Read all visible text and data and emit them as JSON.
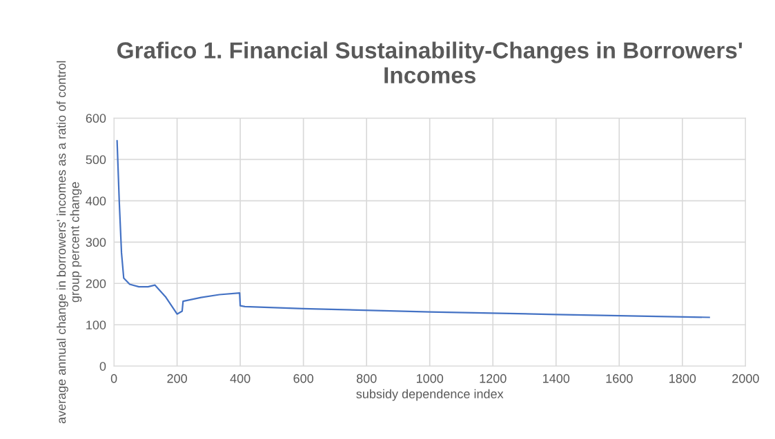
{
  "chart_data": {
    "type": "line",
    "title": "Grafico 1. Financial Sustainability-Changes in Borrowers' Incomes",
    "xlabel": "subsidy dependence index",
    "ylabel": "average annual change in borrowers' incomes as a ratio of control group percent change",
    "series": [
      {
        "color": "#4472c4",
        "x": [
          10,
          17,
          24,
          31,
          50,
          79,
          108,
          130,
          163,
          200,
          216,
          219,
          276,
          334,
          398,
          400,
          415,
          600,
          1000,
          1400,
          1885
        ],
        "values": [
          545,
          396,
          274,
          213,
          198,
          192,
          192,
          196,
          168,
          126,
          133,
          157,
          166,
          173,
          177,
          146,
          144,
          139,
          131,
          125,
          118
        ]
      }
    ],
    "xlim": [
      0,
      2000
    ],
    "xticks": [
      0,
      200,
      400,
      600,
      800,
      1000,
      1200,
      1400,
      1600,
      1800,
      2000
    ],
    "ylim": [
      0,
      600
    ],
    "yticks": [
      0,
      100,
      200,
      300,
      400,
      500,
      600
    ],
    "grid": true
  }
}
